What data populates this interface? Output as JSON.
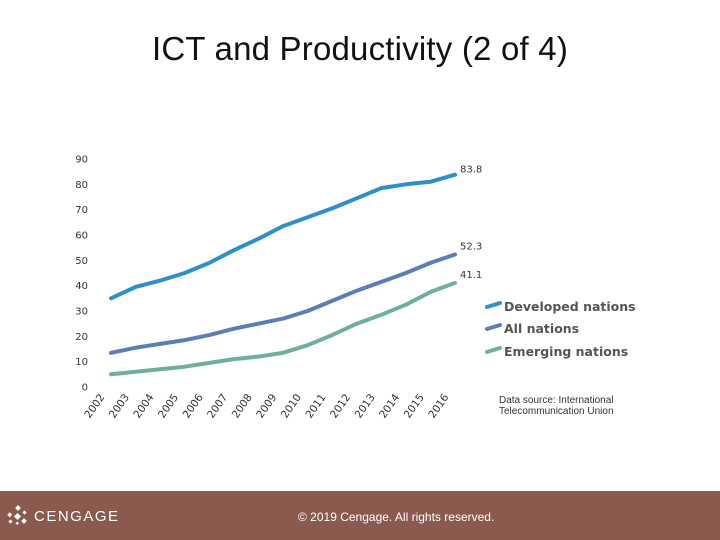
{
  "slide": {
    "title": "ICT and Productivity (2 of 4)"
  },
  "chart_data": {
    "type": "line",
    "title": "",
    "xlabel": "",
    "ylabel": "",
    "ylim": [
      0,
      90
    ],
    "y_ticks": [
      "0",
      "10",
      "20",
      "30",
      "40",
      "50",
      "60",
      "70",
      "80",
      "90"
    ],
    "x": [
      "2002",
      "2003",
      "2004",
      "2005",
      "2006",
      "2007",
      "2008",
      "2009",
      "2010",
      "2011",
      "2012",
      "2013",
      "2014",
      "2015",
      "2016"
    ],
    "grid": false,
    "legend_position": "right",
    "series": [
      {
        "name": "Developed nations",
        "color": "#2e8fcb",
        "values": [
          35.0,
          39.5,
          42.0,
          45.0,
          49.0,
          54.0,
          58.5,
          63.5,
          67.0,
          70.5,
          74.5,
          78.5,
          80.0,
          81.0,
          83.8
        ],
        "end_label": "83.8"
      },
      {
        "name": "All nations",
        "color": "#5b7eb5",
        "values": [
          13.5,
          15.5,
          17.0,
          18.5,
          20.5,
          23.0,
          25.0,
          27.0,
          30.0,
          34.0,
          38.0,
          41.5,
          45.0,
          49.0,
          52.3
        ],
        "end_label": "52.3"
      },
      {
        "name": "Emerging nations",
        "color": "#6fb09a",
        "values": [
          5.0,
          6.0,
          7.0,
          8.0,
          9.5,
          11.0,
          12.0,
          13.5,
          16.5,
          20.5,
          25.0,
          28.5,
          32.5,
          37.5,
          41.1
        ],
        "end_label": "41.1"
      }
    ],
    "source_lines": [
      "Data source: International",
      "Telecommunication Union"
    ]
  },
  "footer": {
    "brand": "CENGAGE",
    "brand_icon": "cengage-logo-icon",
    "copyright": "© 2019 Cengage. All rights reserved.",
    "background_color": "#8a5a4e"
  }
}
